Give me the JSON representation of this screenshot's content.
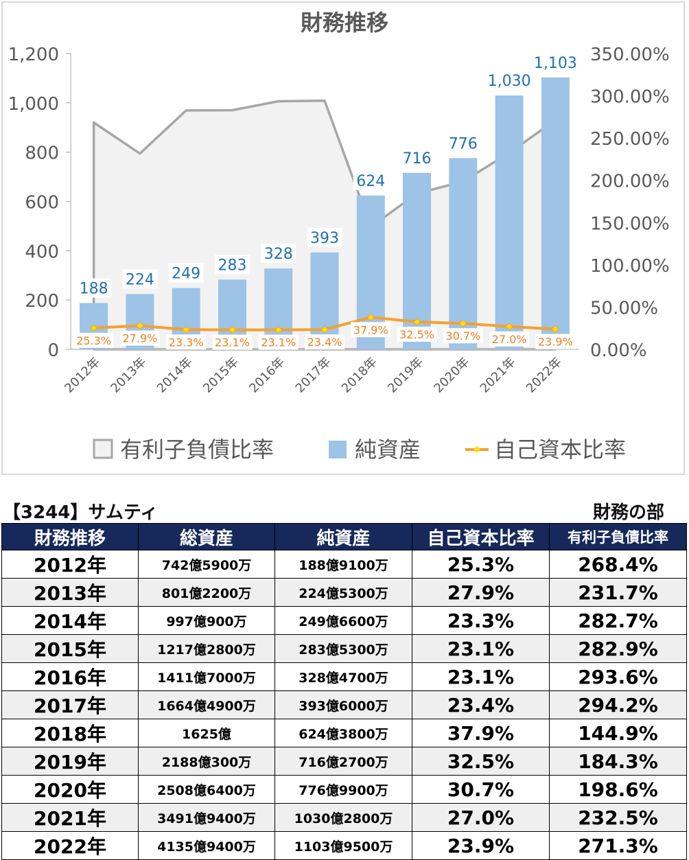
{
  "chart_data": {
    "type": "bar+line+area",
    "title": "財務推移",
    "categories": [
      "2012年",
      "2013年",
      "2014年",
      "2015年",
      "2016年",
      "2017年",
      "2018年",
      "2019年",
      "2020年",
      "2021年",
      "2022年"
    ],
    "y_left": {
      "ylim": [
        0,
        1200
      ],
      "ticks": [
        "0",
        "200",
        "400",
        "600",
        "800",
        "1,000",
        "1,200"
      ]
    },
    "y_right": {
      "ylim": [
        0,
        350
      ],
      "ticks": [
        "0.00%",
        "50.00%",
        "100.00%",
        "150.00%",
        "200.00%",
        "250.00%",
        "300.00%",
        "350.00%"
      ]
    },
    "series": [
      {
        "name": "有利子負債比率",
        "kind": "area",
        "axis": "right",
        "color": "#a6a6a6",
        "values": [
          268.4,
          231.7,
          282.7,
          282.9,
          293.6,
          294.2,
          144.9,
          184.3,
          198.6,
          232.5,
          271.3
        ]
      },
      {
        "name": "純資産",
        "kind": "bar",
        "axis": "left",
        "color": "#9dc3e6",
        "values": [
          188,
          224,
          249,
          283,
          328,
          393,
          624,
          716,
          776,
          1030,
          1103
        ],
        "labels": [
          "188",
          "224",
          "249",
          "283",
          "328",
          "393",
          "624",
          "716",
          "776",
          "1,030",
          "1,103"
        ]
      },
      {
        "name": "自己資本比率",
        "kind": "line",
        "axis": "right",
        "color": "#f5a030",
        "values": [
          25.3,
          27.9,
          23.3,
          23.1,
          23.1,
          23.4,
          37.9,
          32.5,
          30.7,
          27.0,
          23.9
        ],
        "labels": [
          "25.3%",
          "27.9%",
          "23.3%",
          "23.1%",
          "23.1%",
          "23.4%",
          "37.9%",
          "32.5%",
          "30.7%",
          "27.0%",
          "23.9%"
        ]
      }
    ],
    "legend_position": "bottom",
    "grid": false
  },
  "company_label": "【3244】サムティ",
  "section_label": "財務の部",
  "table": {
    "headers": [
      "財務推移",
      "総資産",
      "純資産",
      "自己資本比率",
      "有利子負債比率"
    ],
    "rows": [
      [
        "2012年",
        "742億5900万",
        "188億9100万",
        "25.3%",
        "268.4%"
      ],
      [
        "2013年",
        "801億2200万",
        "224億5300万",
        "27.9%",
        "231.7%"
      ],
      [
        "2014年",
        "997億900万",
        "249億6600万",
        "23.3%",
        "282.7%"
      ],
      [
        "2015年",
        "1217億2800万",
        "283億5300万",
        "23.1%",
        "282.9%"
      ],
      [
        "2016年",
        "1411億7000万",
        "328億4700万",
        "23.1%",
        "293.6%"
      ],
      [
        "2017年",
        "1664億4900万",
        "393億6000万",
        "23.4%",
        "294.2%"
      ],
      [
        "2018年",
        "1625億",
        "624億3800万",
        "37.9%",
        "144.9%"
      ],
      [
        "2019年",
        "2188億300万",
        "716億2700万",
        "32.5%",
        "184.3%"
      ],
      [
        "2020年",
        "2508億6400万",
        "776億9900万",
        "30.7%",
        "198.6%"
      ],
      [
        "2021年",
        "3491億9400万",
        "1030億2800万",
        "27.0%",
        "232.5%"
      ],
      [
        "2022年",
        "4135億9400万",
        "1103億9500万",
        "23.9%",
        "271.3%"
      ]
    ]
  }
}
